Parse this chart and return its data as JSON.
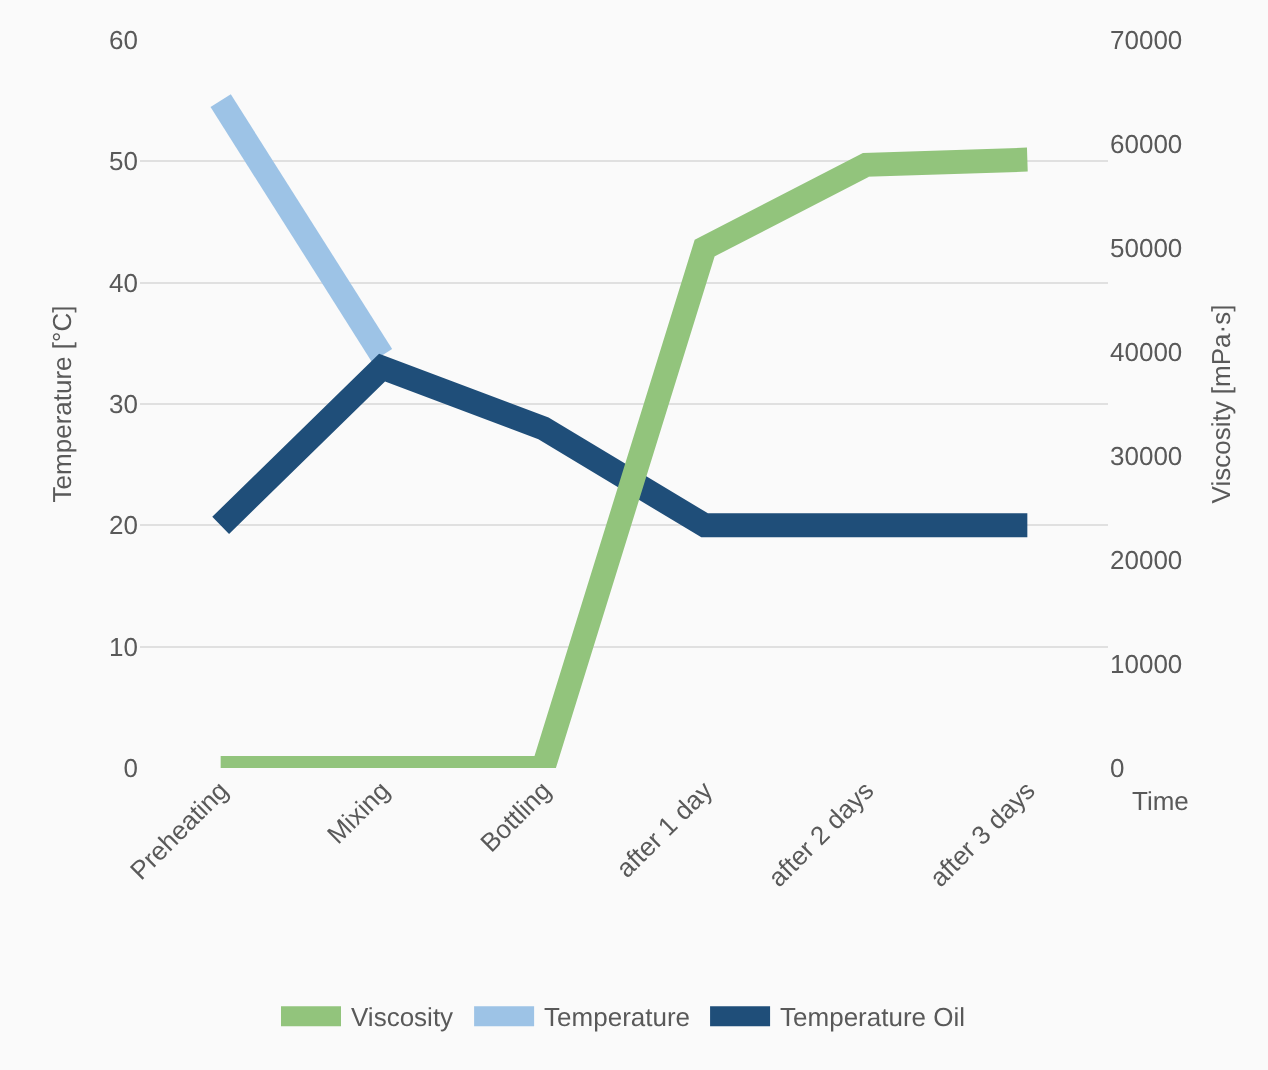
{
  "chart_data": {
    "type": "line",
    "xlabel": "Time",
    "ylabel": "Temperature [°C]",
    "y2label": "Viscosity [mPa·s]",
    "categories": [
      "Preheating",
      "Mixing",
      "Bottling",
      "after 1 day",
      "after 2 days",
      "after 3 days"
    ],
    "series": [
      {
        "name": "Viscosity",
        "color": "#92c47c",
        "axis": "y2",
        "values": [
          0,
          0,
          0,
          50000,
          58000,
          58500
        ]
      },
      {
        "name": "Temperature",
        "color": "#9dc3e6",
        "values": [
          55,
          34,
          null,
          null,
          null,
          null
        ]
      },
      {
        "name": "Temperature Oil",
        "color": "#1f4e79",
        "values": [
          20,
          33,
          28,
          20,
          20,
          20
        ]
      }
    ],
    "ylim": [
      0,
      60
    ],
    "yticks": [
      0,
      10,
      20,
      30,
      40,
      50,
      60
    ],
    "y2lim": [
      0,
      70000
    ],
    "y2ticks": [
      0,
      10000,
      20000,
      30000,
      40000,
      50000,
      60000,
      70000
    ],
    "grid": "y",
    "legend": "bottom",
    "marker": "none",
    "line_style": "solid"
  }
}
